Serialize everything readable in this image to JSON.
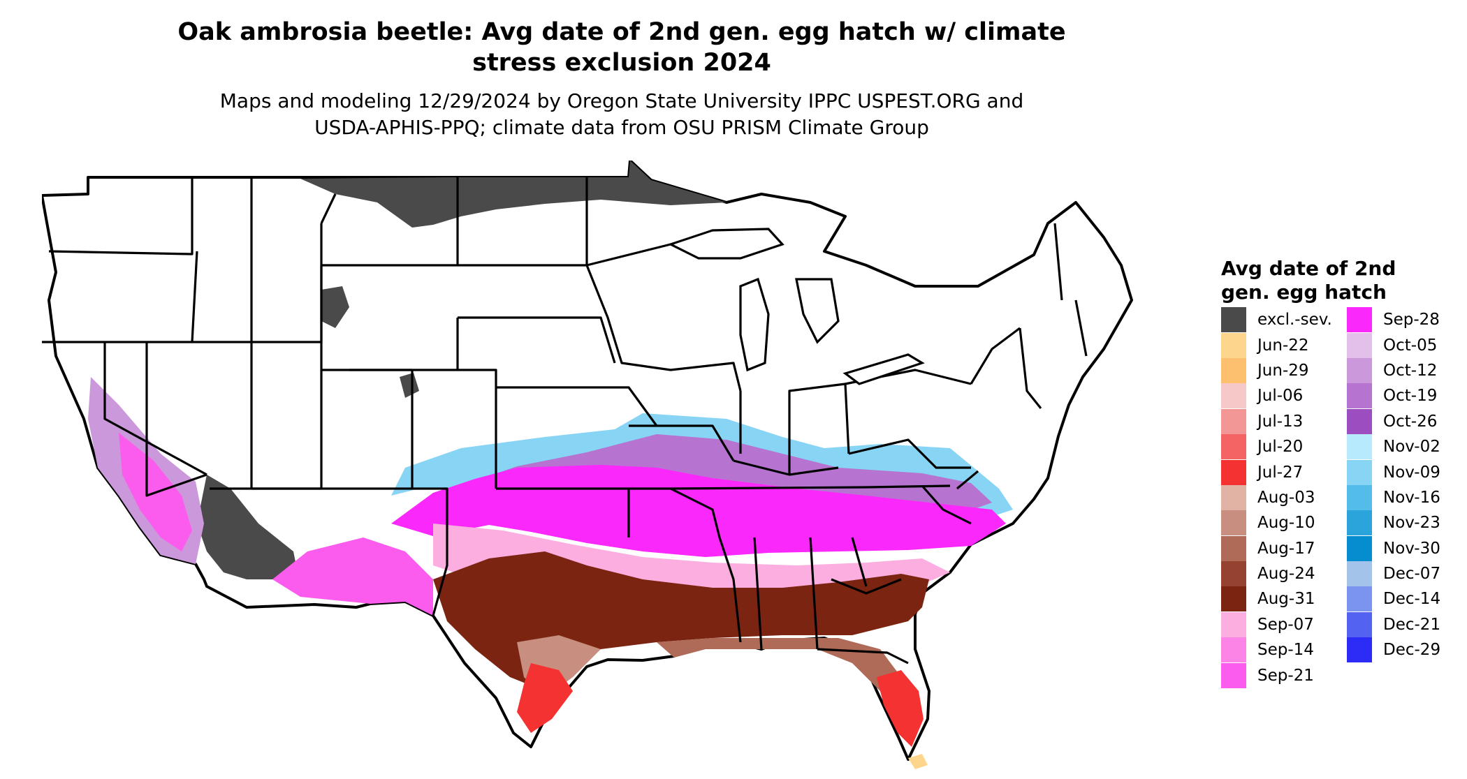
{
  "title_line1": "Oak ambrosia beetle: Avg date of 2nd gen. egg hatch w/ climate",
  "title_line2": "stress exclusion 2024",
  "subtitle_line1": "Maps and modeling 12/29/2024 by Oregon State University IPPC USPEST.ORG and",
  "subtitle_line2": "USDA-APHIS-PPQ; climate data from OSU PRISM Climate Group",
  "legend": {
    "title_line1": "Avg date of 2nd",
    "title_line2": "gen. egg hatch",
    "items": [
      {
        "label": "excl.-sev.",
        "color": "#4a4a4a"
      },
      {
        "label": "Jun-22",
        "color": "#fdd58d"
      },
      {
        "label": "Jun-29",
        "color": "#fcc06e"
      },
      {
        "label": "Jul-06",
        "color": "#f6c8c8"
      },
      {
        "label": "Jul-13",
        "color": "#f39696"
      },
      {
        "label": "Jul-20",
        "color": "#f46464"
      },
      {
        "label": "Jul-27",
        "color": "#f43232"
      },
      {
        "label": "Aug-03",
        "color": "#e1b3a4"
      },
      {
        "label": "Aug-10",
        "color": "#c88f80"
      },
      {
        "label": "Aug-17",
        "color": "#b06a58"
      },
      {
        "label": "Aug-24",
        "color": "#954231"
      },
      {
        "label": "Aug-31",
        "color": "#7b2411"
      },
      {
        "label": "Sep-07",
        "color": "#fcaee0"
      },
      {
        "label": "Sep-14",
        "color": "#fc84e6"
      },
      {
        "label": "Sep-21",
        "color": "#fb5ced"
      },
      {
        "label": "Sep-28",
        "color": "#fb28fb"
      },
      {
        "label": "Oct-05",
        "color": "#e2c0ea"
      },
      {
        "label": "Oct-12",
        "color": "#cc98dc"
      },
      {
        "label": "Oct-19",
        "color": "#b673cf"
      },
      {
        "label": "Oct-26",
        "color": "#9c4dc0"
      },
      {
        "label": "Nov-02",
        "color": "#b7eafc"
      },
      {
        "label": "Nov-09",
        "color": "#88d4f4"
      },
      {
        "label": "Nov-16",
        "color": "#54bce8"
      },
      {
        "label": "Nov-23",
        "color": "#2ba4dc"
      },
      {
        "label": "Nov-30",
        "color": "#058dd0"
      },
      {
        "label": "Dec-07",
        "color": "#a3c3ea"
      },
      {
        "label": "Dec-14",
        "color": "#7b95ef"
      },
      {
        "label": "Dec-21",
        "color": "#5462f2"
      },
      {
        "label": "Dec-29",
        "color": "#2c2cf6"
      }
    ]
  }
}
